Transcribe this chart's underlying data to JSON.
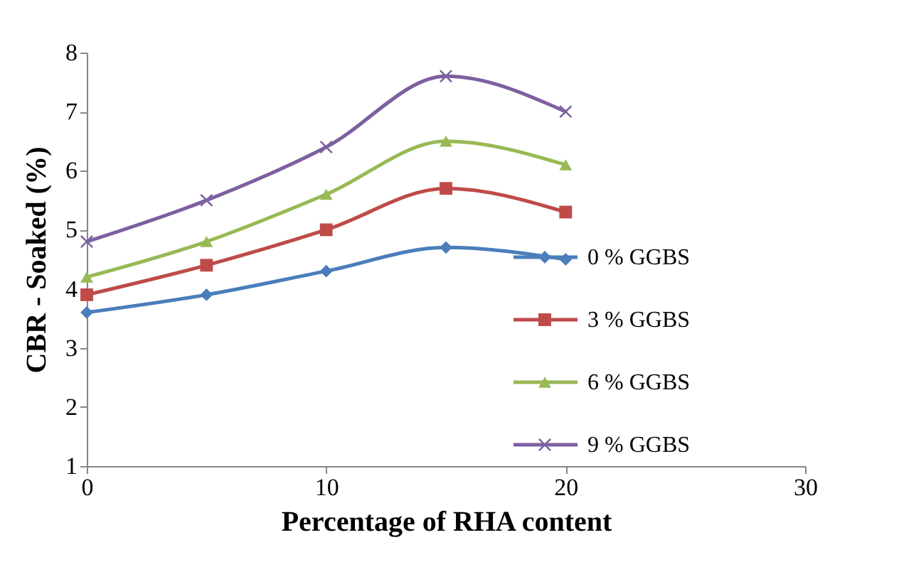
{
  "chart_data": {
    "type": "line",
    "xlabel": "Percentage of RHA content",
    "ylabel": "CBR - Soaked (%)",
    "x": [
      0,
      5,
      10,
      15,
      20
    ],
    "xlim": [
      0,
      30
    ],
    "xticks": [
      0,
      10,
      20,
      30
    ],
    "ylim": [
      1,
      8
    ],
    "yticks": [
      1,
      2,
      3,
      4,
      5,
      6,
      7,
      8
    ],
    "grid": false,
    "legend": "right",
    "series": [
      {
        "name": "0 % GGBS",
        "color": "#4a7ebb",
        "marker": "diamond",
        "values": [
          3.6,
          3.9,
          4.3,
          4.7,
          4.5
        ]
      },
      {
        "name": "3 % GGBS",
        "color": "#be4b48",
        "marker": "square",
        "values": [
          3.9,
          4.4,
          5.0,
          5.7,
          5.3
        ]
      },
      {
        "name": "6 % GGBS",
        "color": "#98b954",
        "marker": "triangle",
        "values": [
          4.2,
          4.8,
          5.6,
          6.5,
          6.1
        ]
      },
      {
        "name": "9 % GGBS",
        "color": "#7d60a0",
        "marker": "cross",
        "values": [
          4.8,
          5.5,
          6.4,
          7.6,
          7.0
        ]
      }
    ]
  }
}
